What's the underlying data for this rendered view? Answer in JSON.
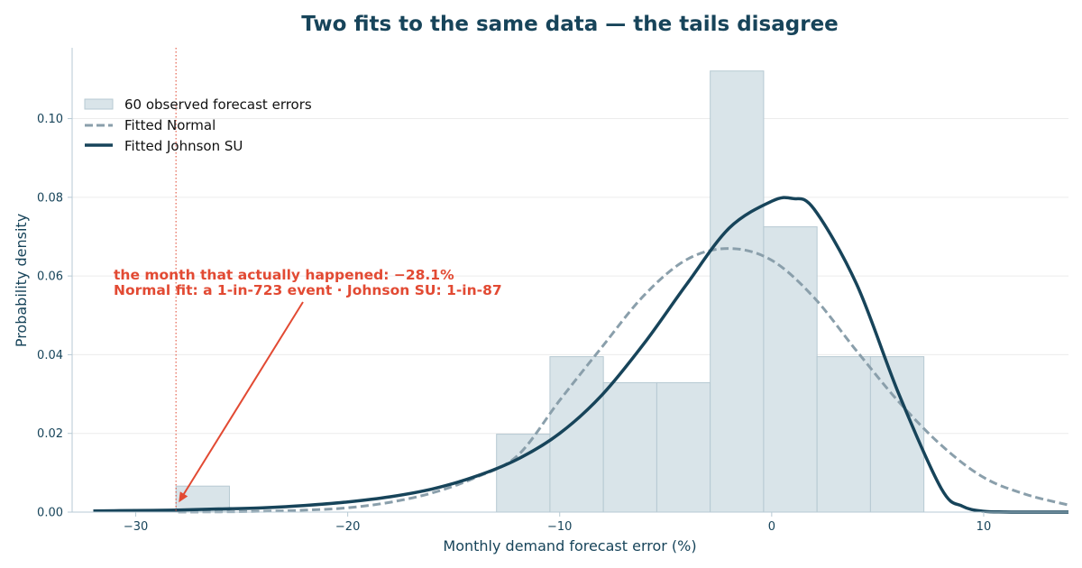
{
  "chart_data": {
    "type": "histogram",
    "title": "Two fits to the same data — the tails disagree",
    "xlabel": "Monthly demand forecast error  (%)",
    "ylabel": "Probability density",
    "xlim": [
      -33,
      14
    ],
    "ylim": [
      0,
      0.118
    ],
    "xticks": [
      -30,
      -20,
      -10,
      0,
      10
    ],
    "xtick_labels": [
      "−30",
      "−20",
      "−10",
      "0",
      "10"
    ],
    "yticks": [
      0,
      0.02,
      0.04,
      0.06,
      0.08,
      0.1
    ],
    "ytick_labels": [
      "0.00",
      "0.02",
      "0.04",
      "0.06",
      "0.08",
      "0.10"
    ],
    "grid": "horizontal",
    "legend": "upper-left",
    "series": [
      {
        "name": "60 observed forecast errors",
        "kind": "histogram",
        "bins": [
          {
            "x0": -28.1,
            "x1": -25.58,
            "density": 0.0066
          },
          {
            "x0": -12.98,
            "x1": -10.46,
            "density": 0.0198
          },
          {
            "x0": -10.46,
            "x1": -7.94,
            "density": 0.0395
          },
          {
            "x0": -7.94,
            "x1": -5.42,
            "density": 0.0329
          },
          {
            "x0": -5.42,
            "x1": -2.9,
            "density": 0.0329
          },
          {
            "x0": -2.9,
            "x1": -0.38,
            "density": 0.1121
          },
          {
            "x0": -0.38,
            "x1": 2.14,
            "density": 0.0725
          },
          {
            "x0": 2.14,
            "x1": 4.66,
            "density": 0.0395
          },
          {
            "x0": 4.66,
            "x1": 7.18,
            "density": 0.0395
          }
        ]
      },
      {
        "name": "Fitted Normal",
        "kind": "line-dashed",
        "x": [
          -28,
          -26,
          -24,
          -22,
          -20,
          -18,
          -16,
          -14,
          -12,
          -10,
          -8,
          -6,
          -4,
          -2,
          0,
          2,
          4,
          6,
          8,
          10,
          12,
          14
        ],
        "values": [
          2e-05,
          7e-05,
          0.0002,
          0.0005,
          0.0011,
          0.0025,
          0.0049,
          0.0087,
          0.0143,
          0.0284,
          0.042,
          0.0552,
          0.0642,
          0.067,
          0.064,
          0.0545,
          0.041,
          0.028,
          0.017,
          0.0088,
          0.0045,
          0.0018
        ]
      },
      {
        "name": "Fitted Johnson SU",
        "kind": "line",
        "x": [
          -32,
          -30,
          -28,
          -26,
          -24,
          -22,
          -20,
          -18,
          -16,
          -14,
          -12,
          -10,
          -8,
          -6,
          -4,
          -2,
          0,
          1,
          2,
          4,
          6,
          8,
          9,
          10,
          11,
          12,
          14
        ],
        "values": [
          0.0003,
          0.0004,
          0.0005,
          0.0008,
          0.0011,
          0.0017,
          0.0026,
          0.0039,
          0.0059,
          0.009,
          0.0134,
          0.02,
          0.0298,
          0.043,
          0.058,
          0.0722,
          0.079,
          0.0797,
          0.077,
          0.058,
          0.03,
          0.006,
          0.0015,
          0.0002,
          3e-05,
          0.0,
          0.0
        ]
      }
    ],
    "marker": {
      "x": -28.1,
      "style": "dotted"
    },
    "annotation": {
      "line1": "the month that actually happened:  −28.1%",
      "line2": "Normal fit: a 1-in-723 event · Johnson SU: 1-in-87",
      "points_to": {
        "x": -28.1,
        "y": 0.002
      }
    },
    "colors": {
      "title": "#17445a",
      "hist_fill": "#d9e4e9",
      "hist_edge": "#b6c9d2",
      "normal": "#8a9fab",
      "johnson": "#17445a",
      "annotation": "#e24a33",
      "grid": "#ececec",
      "axis": "#b7cad4"
    }
  }
}
